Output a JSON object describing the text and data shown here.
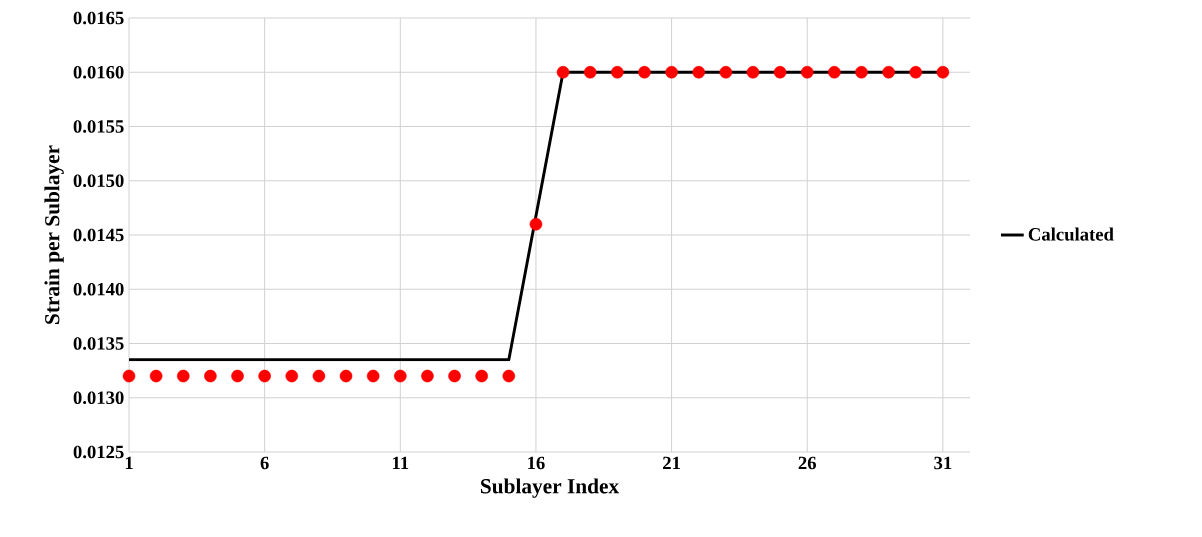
{
  "chart_data": {
    "type": "line",
    "xlabel": "Sublayer Index",
    "ylabel": "Strain per Sublayer",
    "xlim": [
      1,
      32
    ],
    "xticks": [
      1,
      6,
      11,
      16,
      21,
      26,
      31
    ],
    "ylim": [
      0.0125,
      0.0165
    ],
    "yticks": [
      {
        "value": 0.0125,
        "label": "0.0125"
      },
      {
        "value": 0.013,
        "label": "0.0130"
      },
      {
        "value": 0.0135,
        "label": "0.0135"
      },
      {
        "value": 0.014,
        "label": "0.0140"
      },
      {
        "value": 0.0145,
        "label": "0.0145"
      },
      {
        "value": 0.015,
        "label": "0.0150"
      },
      {
        "value": 0.0155,
        "label": "0.0155"
      },
      {
        "value": 0.016,
        "label": "0.0160"
      },
      {
        "value": 0.0165,
        "label": "0.0165"
      }
    ],
    "grid": true,
    "legend": "right",
    "marker": "circle",
    "series": [
      {
        "name": "Calculated",
        "color": "#000000",
        "line_style": "solid",
        "marker": "none",
        "x": [
          1,
          15,
          17,
          31
        ],
        "values": [
          0.01335,
          0.01335,
          0.016,
          0.016
        ]
      },
      {
        "type": "scatter",
        "color": "#ff0000",
        "x": [
          1,
          2,
          3,
          4,
          5,
          6,
          7,
          8,
          9,
          10,
          11,
          12,
          13,
          14,
          15,
          16,
          17,
          18,
          19,
          20,
          21,
          22,
          23,
          24,
          25,
          26,
          27,
          28,
          29,
          30,
          31
        ],
        "values": [
          0.0132,
          0.0132,
          0.0132,
          0.0132,
          0.0132,
          0.0132,
          0.0132,
          0.0132,
          0.0132,
          0.0132,
          0.0132,
          0.0132,
          0.0132,
          0.0132,
          0.0132,
          0.0146,
          0.016,
          0.016,
          0.016,
          0.016,
          0.016,
          0.016,
          0.016,
          0.016,
          0.016,
          0.016,
          0.016,
          0.016,
          0.016,
          0.016,
          0.016
        ]
      }
    ]
  }
}
